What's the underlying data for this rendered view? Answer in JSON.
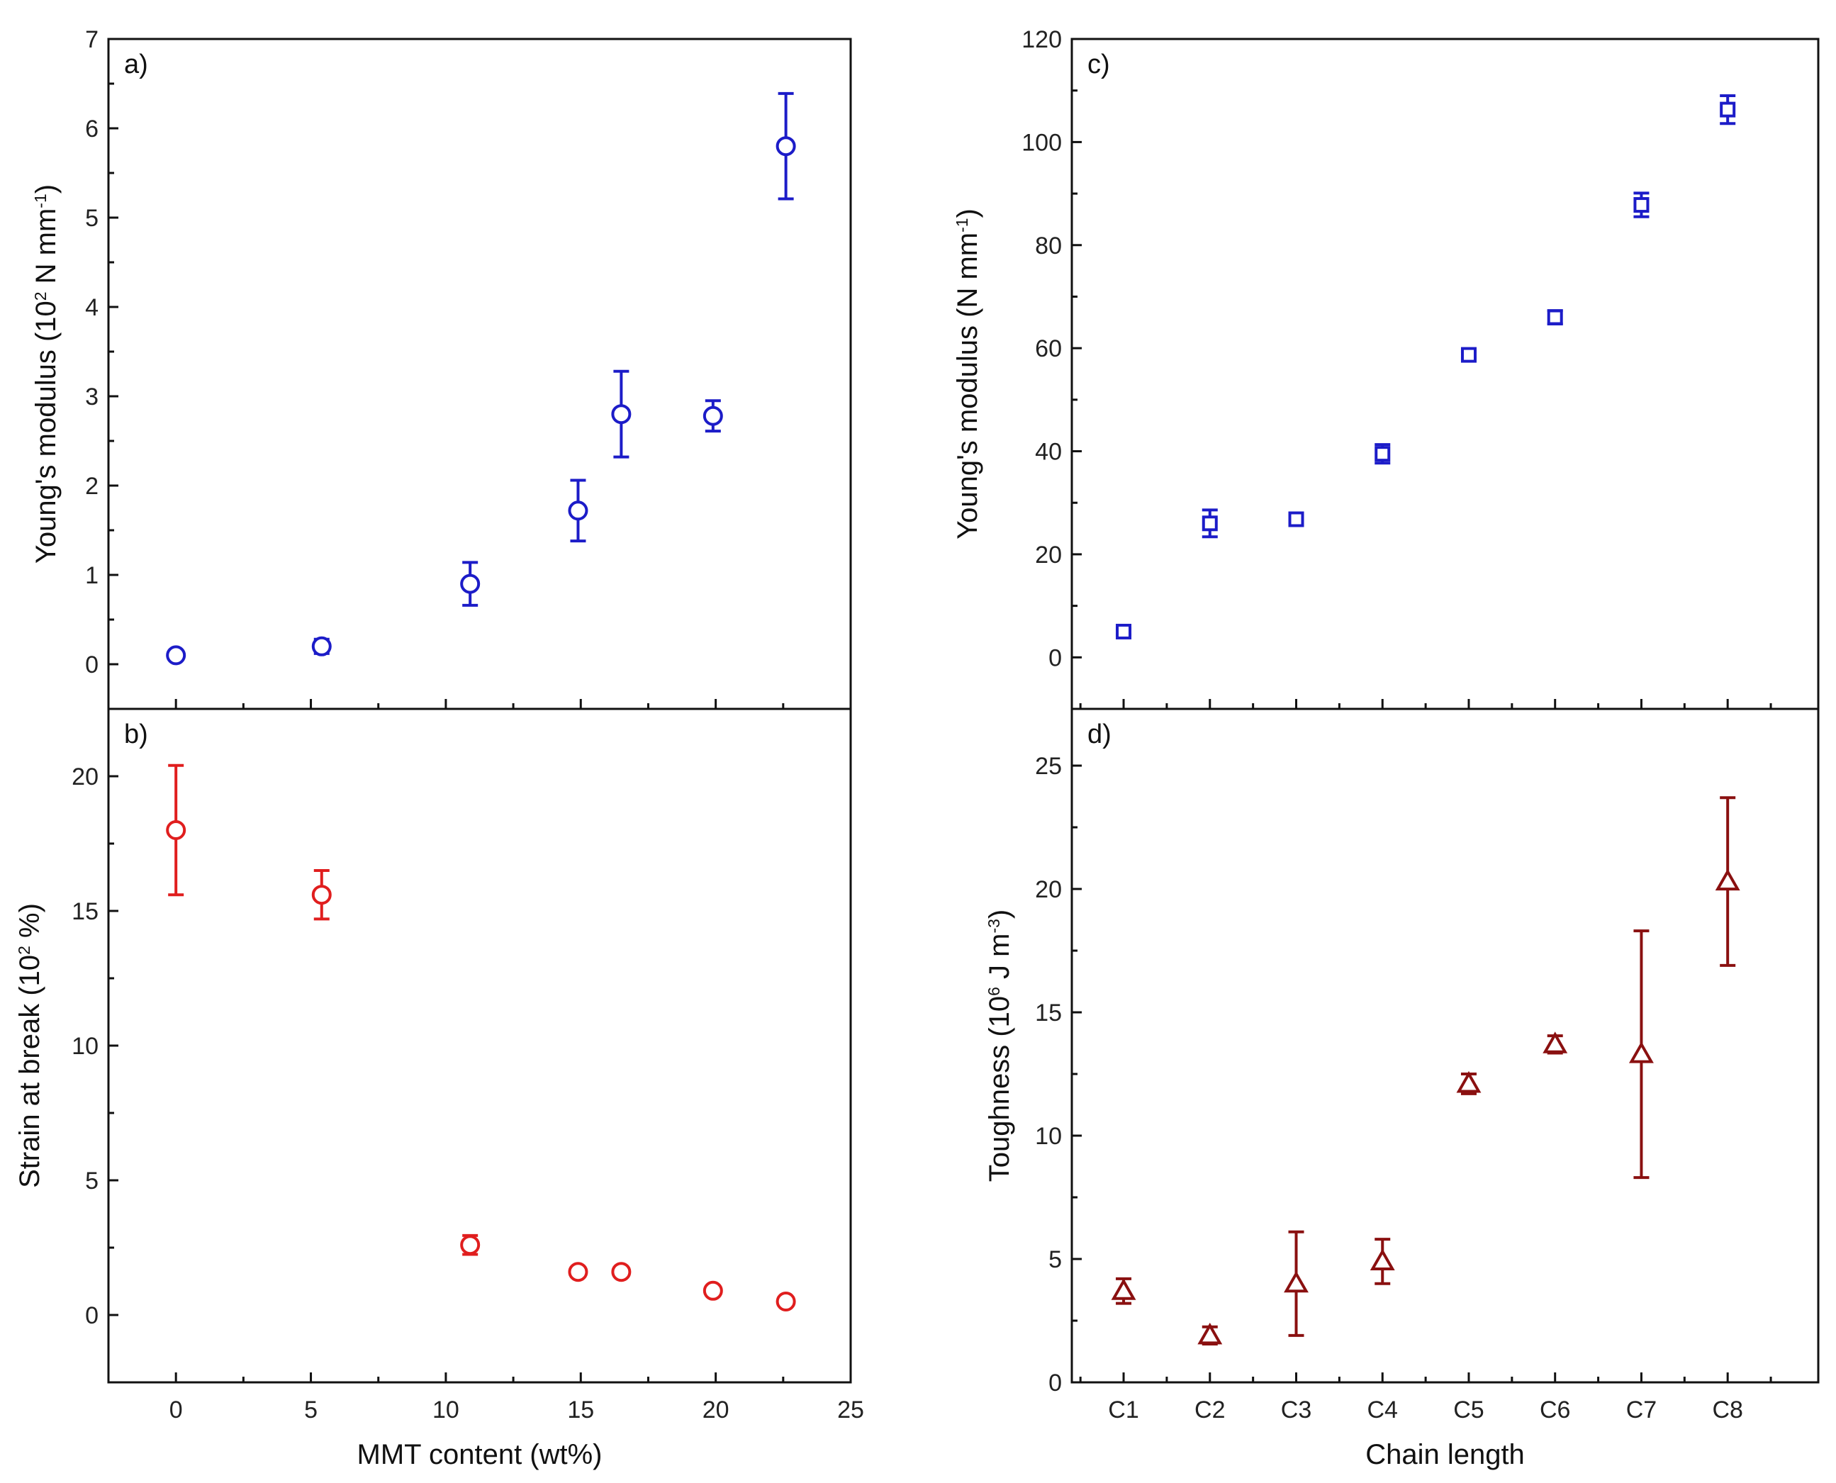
{
  "colors": {
    "blue": "#1c1cc8",
    "red": "#e01e1e",
    "darkred": "#8a1010",
    "axis": "#111111"
  },
  "chart_data": [
    {
      "panel": "a",
      "label": "a)",
      "type": "scatter",
      "marker": "circle",
      "color_key": "blue",
      "xlabel": "",
      "ylabel_parts": [
        "Young's modulus (10",
        "2",
        " N mm",
        "-1",
        ")"
      ],
      "xlim": [
        -2.5,
        25
      ],
      "ylim": [
        -0.5,
        7
      ],
      "xticks": [
        0,
        5,
        10,
        15,
        20,
        25
      ],
      "yticks": [
        0,
        1,
        2,
        3,
        4,
        5,
        6,
        7
      ],
      "xtick_labels_visible": false,
      "x": [
        0,
        5.4,
        10.9,
        14.9,
        16.5,
        19.9,
        22.6
      ],
      "y": [
        0.1,
        0.2,
        0.9,
        1.72,
        2.8,
        2.78,
        5.8
      ],
      "err": [
        0.05,
        0.08,
        0.24,
        0.34,
        0.48,
        0.17,
        0.59
      ]
    },
    {
      "panel": "b",
      "label": "b)",
      "type": "scatter",
      "marker": "circle",
      "color_key": "red",
      "xlabel": "MMT content (wt%)",
      "ylabel_parts": [
        "Strain at break (10",
        "2",
        " %)"
      ],
      "xlim": [
        -2.5,
        25
      ],
      "ylim": [
        -2.5,
        22.5
      ],
      "xticks": [
        0,
        5,
        10,
        15,
        20,
        25
      ],
      "yticks": [
        0,
        5,
        10,
        15,
        20
      ],
      "xtick_labels_visible": true,
      "x": [
        0,
        5.4,
        10.9,
        14.9,
        16.5,
        19.9,
        22.6
      ],
      "y": [
        18.0,
        15.6,
        2.6,
        1.6,
        1.6,
        0.9,
        0.5
      ],
      "err": [
        2.4,
        0.9,
        0.35,
        0.12,
        0.12,
        0.12,
        0.12
      ]
    },
    {
      "panel": "c",
      "label": "c)",
      "type": "scatter",
      "marker": "square",
      "color_key": "blue",
      "xlabel": "",
      "ylabel_parts": [
        "Young's modulus (N mm",
        "-1",
        ")"
      ],
      "categories": [
        "C1",
        "C2",
        "C3",
        "C4",
        "C5",
        "C6",
        "C7",
        "C8"
      ],
      "xlim": [
        -0.6,
        8.05
      ],
      "ylim": [
        -10,
        120
      ],
      "yticks": [
        0,
        20,
        40,
        60,
        80,
        100,
        120
      ],
      "xtick_labels_visible": false,
      "y": [
        5,
        26,
        26.8,
        39.5,
        58.7,
        66,
        87.8,
        106.3
      ],
      "err": [
        0.6,
        2.6,
        1.2,
        1.8,
        0.6,
        1.3,
        2.3,
        2.7
      ]
    },
    {
      "panel": "d",
      "label": "d)",
      "type": "scatter",
      "marker": "triangle",
      "color_key": "darkred",
      "xlabel": "Chain length",
      "ylabel_parts": [
        "Toughness (10",
        "6",
        " J m",
        "-3",
        ")"
      ],
      "categories": [
        "C1",
        "C2",
        "C3",
        "C4",
        "C5",
        "C6",
        "C7",
        "C8"
      ],
      "xlim": [
        -0.6,
        8.05
      ],
      "ylim": [
        0,
        27.3
      ],
      "yticks": [
        0,
        5,
        10,
        15,
        20,
        25
      ],
      "xtick_labels_visible": true,
      "y": [
        3.7,
        1.9,
        4.0,
        4.9,
        12.1,
        13.7,
        13.3,
        20.3
      ],
      "err": [
        0.5,
        0.35,
        2.1,
        0.9,
        0.4,
        0.35,
        5.0,
        3.4
      ]
    }
  ]
}
